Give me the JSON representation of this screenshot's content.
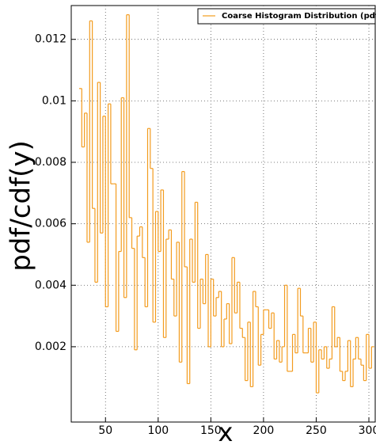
{
  "chart_data": {
    "type": "histogram",
    "legend": {
      "label": "Coarse Histogram Distribution (pdf)",
      "position": "upper right"
    },
    "xlabel": "x",
    "ylabel": "pdf/cdf(y)",
    "color": "#f39c1f",
    "grid": true,
    "xlim": [
      17.5,
      306
    ],
    "ylim": [
      -0.00045,
      0.0131
    ],
    "xticks": [
      50,
      100,
      150,
      200,
      250,
      300
    ],
    "yticks": [
      0.002,
      0.004,
      0.006,
      0.008,
      0.01,
      0.012
    ],
    "bins": [
      25,
      27.5,
      30,
      32.5,
      35,
      37.5,
      40,
      42.5,
      45,
      47.5,
      50,
      52.5,
      55,
      57.5,
      60,
      62.5,
      65,
      67.5,
      70,
      72.5,
      75,
      77.5,
      80,
      82.5,
      85,
      87.5,
      90,
      92.5,
      95,
      97.5,
      100,
      102.5,
      105,
      107.5,
      110,
      112.5,
      115,
      117.5,
      120,
      122.5,
      125,
      127.5,
      130,
      132.5,
      135,
      137.5,
      140,
      142.5,
      145,
      147.5,
      150,
      152.5,
      155,
      157.5,
      160,
      162.5,
      165,
      167.5,
      170,
      172.5,
      175,
      177.5,
      180,
      182.5,
      185,
      187.5,
      190,
      192.5,
      195,
      197.5,
      200,
      202.5,
      205,
      207.5,
      210,
      212.5,
      215,
      217.5,
      220,
      222.5,
      225,
      227.5,
      230,
      232.5,
      235,
      237.5,
      240,
      242.5,
      245,
      247.5,
      250,
      252.5,
      255,
      257.5,
      260,
      262.5,
      265,
      267.5,
      270,
      272.5,
      275,
      277.5,
      280,
      282.5,
      285,
      287.5,
      290,
      292.5,
      295,
      297.5,
      300,
      302.5,
      305
    ],
    "values": [
      0.0104,
      0.0085,
      0.0096,
      0.0054,
      0.0126,
      0.0065,
      0.0041,
      0.0106,
      0.0057,
      0.0095,
      0.0033,
      0.0099,
      0.0073,
      0.0073,
      0.0025,
      0.0051,
      0.0101,
      0.0036,
      0.0128,
      0.0062,
      0.0052,
      0.0019,
      0.0056,
      0.0059,
      0.0049,
      0.0033,
      0.0091,
      0.0078,
      0.0028,
      0.0064,
      0.0051,
      0.0071,
      0.0023,
      0.0055,
      0.0058,
      0.0042,
      0.003,
      0.0054,
      0.0015,
      0.0077,
      0.0046,
      0.0008,
      0.0055,
      0.0041,
      0.0067,
      0.0026,
      0.0042,
      0.0034,
      0.005,
      0.002,
      0.0042,
      0.003,
      0.0036,
      0.0038,
      0.002,
      0.0029,
      0.0034,
      0.0021,
      0.0049,
      0.0031,
      0.0041,
      0.0026,
      0.0023,
      0.0009,
      0.0028,
      0.0007,
      0.0038,
      0.0033,
      0.0014,
      0.0024,
      0.0032,
      0.0032,
      0.0026,
      0.0031,
      0.0016,
      0.0022,
      0.0015,
      0.002,
      0.004,
      0.0012,
      0.0012,
      0.0024,
      0.0018,
      0.0039,
      0.003,
      0.0018,
      0.0018,
      0.0026,
      0.0015,
      0.0028,
      0.0005,
      0.0019,
      0.0016,
      0.002,
      0.0013,
      0.0016,
      0.0033,
      0.002,
      0.0023,
      0.0012,
      0.0009,
      0.0012,
      0.0022,
      0.0007,
      0.0016,
      0.0023,
      0.0016,
      0.0014,
      0.0009,
      0.0024,
      0.0013,
      0.002
    ]
  }
}
